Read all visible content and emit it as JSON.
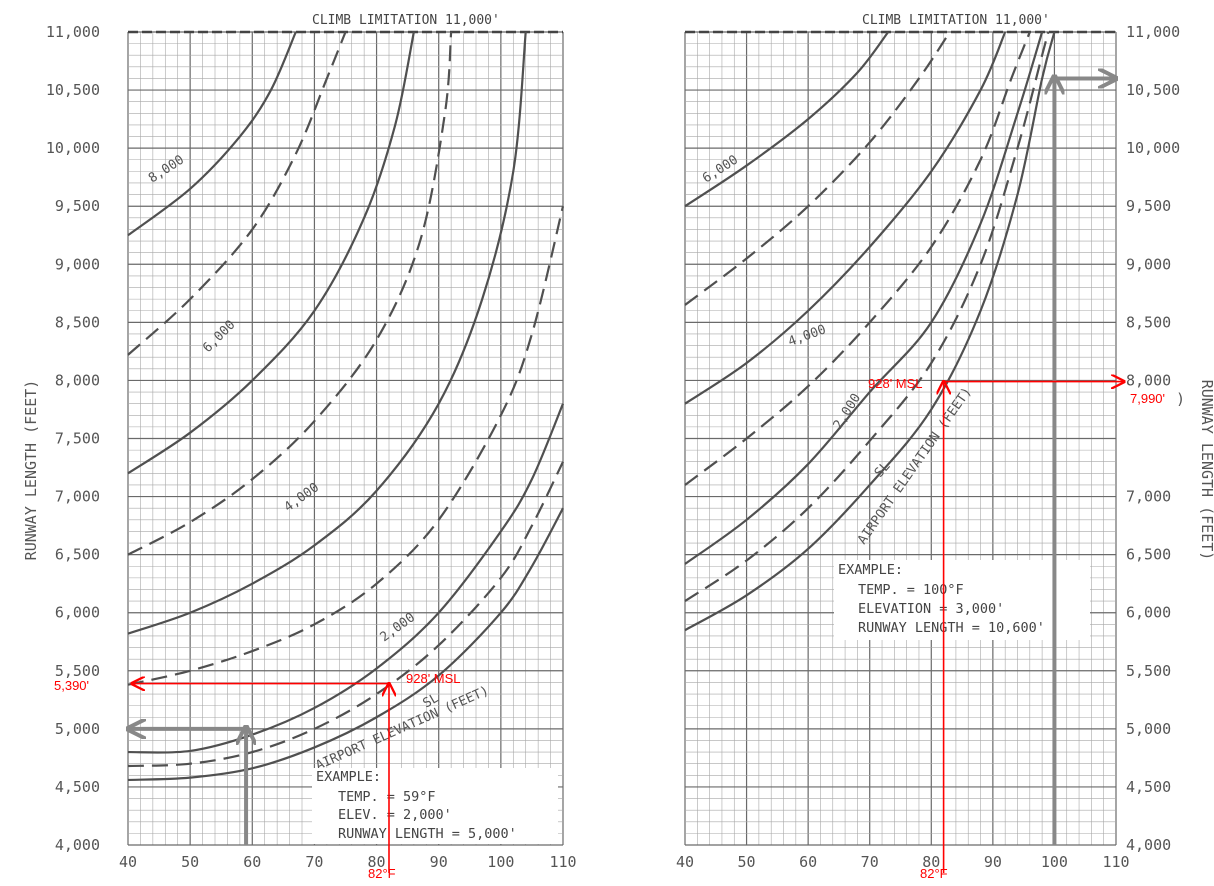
{
  "chart_data": [
    {
      "type": "line",
      "title": "CLIMB LIMITATION 11,000'",
      "xlabel": "",
      "ylabel": "RUNWAY LENGTH (FEET)",
      "xlim": [
        40,
        110
      ],
      "ylim": [
        4000,
        11000
      ],
      "x_ticks": [
        "40",
        "50",
        "60",
        "70",
        "80",
        "90",
        "100",
        "110"
      ],
      "y_ticks": [
        "4,000",
        "4,500",
        "5,000",
        "5,500",
        "6,000",
        "6,500",
        "7,000",
        "7,500",
        "8,000",
        "8,500",
        "9,000",
        "9,500",
        "10,000",
        "10,500",
        "11,000"
      ],
      "grid": true,
      "series": [
        {
          "name": "SL",
          "style": "solid",
          "points": [
            [
              40,
              4560
            ],
            [
              50,
              4580
            ],
            [
              60,
              4660
            ],
            [
              70,
              4840
            ],
            [
              80,
              5100
            ],
            [
              90,
              5460
            ],
            [
              100,
              6000
            ],
            [
              105,
              6400
            ],
            [
              110,
              6900
            ]
          ]
        },
        {
          "name": "",
          "style": "dashed",
          "points": [
            [
              40,
              4680
            ],
            [
              50,
              4700
            ],
            [
              60,
              4800
            ],
            [
              70,
              5000
            ],
            [
              80,
              5300
            ],
            [
              90,
              5720
            ],
            [
              100,
              6300
            ],
            [
              105,
              6750
            ],
            [
              110,
              7300
            ]
          ]
        },
        {
          "name": "",
          "style": "solid",
          "points": [
            [
              40,
              4800
            ],
            [
              50,
              4810
            ],
            [
              60,
              4950
            ],
            [
              70,
              5180
            ],
            [
              80,
              5520
            ],
            [
              90,
              6000
            ],
            [
              100,
              6700
            ],
            [
              105,
              7150
            ],
            [
              110,
              7800
            ]
          ]
        },
        {
          "name": "",
          "style": "dashed",
          "points": [
            [
              40,
              5380
            ],
            [
              50,
              5500
            ],
            [
              60,
              5670
            ],
            [
              70,
              5900
            ],
            [
              80,
              6250
            ],
            [
              90,
              6800
            ],
            [
              100,
              7700
            ],
            [
              105,
              8400
            ],
            [
              110,
              9500
            ]
          ]
        },
        {
          "name": "2,000",
          "style": "solid",
          "points": [
            [
              40,
              5820
            ],
            [
              50,
              6000
            ],
            [
              60,
              6250
            ],
            [
              70,
              6580
            ],
            [
              80,
              7050
            ],
            [
              90,
              7800
            ],
            [
              97,
              8700
            ],
            [
              102,
              9800
            ],
            [
              104,
              11000
            ]
          ]
        },
        {
          "name": "",
          "style": "dashed",
          "points": [
            [
              40,
              6500
            ],
            [
              50,
              6780
            ],
            [
              60,
              7150
            ],
            [
              70,
              7650
            ],
            [
              80,
              8350
            ],
            [
              87,
              9200
            ],
            [
              91,
              10300
            ],
            [
              92,
              11000
            ]
          ]
        },
        {
          "name": "4,000",
          "style": "solid",
          "points": [
            [
              40,
              7200
            ],
            [
              50,
              7550
            ],
            [
              60,
              8000
            ],
            [
              70,
              8600
            ],
            [
              78,
              9400
            ],
            [
              83,
              10200
            ],
            [
              86,
              11000
            ]
          ]
        },
        {
          "name": "",
          "style": "dashed",
          "points": [
            [
              40,
              8220
            ],
            [
              50,
              8700
            ],
            [
              60,
              9300
            ],
            [
              67,
              9950
            ],
            [
              72,
              10600
            ],
            [
              75,
              11000
            ]
          ]
        },
        {
          "name": "6,000",
          "style": "solid",
          "points": [
            [
              40,
              9250
            ],
            [
              50,
              9650
            ],
            [
              58,
              10100
            ],
            [
              63,
              10500
            ],
            [
              67,
              11000
            ]
          ]
        }
      ],
      "curve_labels": [
        "8,000",
        "6,000",
        "4,000",
        "2,000",
        "SL",
        "AIRPORT ELEVATION (FEET)"
      ],
      "example": {
        "heading": "EXAMPLE:",
        "lines": [
          "TEMP. = 59°F",
          "ELEV. = 2,000'",
          "RUNWAY LENGTH = 5,000'"
        ]
      },
      "annotations": {
        "elevation": "928' MSL",
        "result": "5,390'",
        "temp": "82°F"
      },
      "annotation_points": {
        "temp_f": 82,
        "runway_length_ft": 5390
      },
      "example_path": {
        "temp_f": 59,
        "runway_length_ft": 5000
      },
      "annotation_color": "#ff0000"
    },
    {
      "type": "line",
      "title": "CLIMB LIMITATION 11,000'",
      "xlabel": "",
      "ylabel": "RUNWAY LENGTH (FEET)",
      "xlim": [
        40,
        110
      ],
      "ylim": [
        4000,
        11000
      ],
      "x_ticks": [
        "40",
        "50",
        "60",
        "70",
        "80",
        "90",
        "100",
        "110"
      ],
      "y_ticks": [
        "4,000",
        "4,500",
        "5,000",
        "5,500",
        "6,000",
        "6,500",
        "7,000",
        "",
        "8,000",
        "8,500",
        "9,000",
        "9,500",
        "10,000",
        "10,500",
        "11,000"
      ],
      "y_tick_7500_fragment": ")",
      "grid": true,
      "series": [
        {
          "name": "SL",
          "style": "solid",
          "points": [
            [
              40,
              5850
            ],
            [
              50,
              6150
            ],
            [
              60,
              6550
            ],
            [
              70,
              7100
            ],
            [
              80,
              7750
            ],
            [
              88,
              8600
            ],
            [
              94,
              9600
            ],
            [
              98,
              10600
            ],
            [
              100,
              11000
            ]
          ]
        },
        {
          "name": "",
          "style": "dashed",
          "points": [
            [
              40,
              6100
            ],
            [
              50,
              6450
            ],
            [
              60,
              6900
            ],
            [
              70,
              7480
            ],
            [
              80,
              8150
            ],
            [
              88,
              9000
            ],
            [
              94,
              10000
            ],
            [
              98,
              10800
            ],
            [
              99,
              11000
            ]
          ]
        },
        {
          "name": "",
          "style": "solid",
          "points": [
            [
              40,
              6420
            ],
            [
              50,
              6800
            ],
            [
              60,
              7280
            ],
            [
              70,
              7900
            ],
            [
              80,
              8500
            ],
            [
              88,
              9350
            ],
            [
              94,
              10300
            ],
            [
              98,
              11000
            ]
          ]
        },
        {
          "name": "",
          "style": "dashed",
          "points": [
            [
              40,
              7100
            ],
            [
              50,
              7500
            ],
            [
              60,
              7950
            ],
            [
              70,
              8500
            ],
            [
              80,
              9150
            ],
            [
              88,
              9900
            ],
            [
              93,
              10600
            ],
            [
              96,
              11000
            ]
          ]
        },
        {
          "name": "2,000",
          "style": "solid",
          "points": [
            [
              40,
              7800
            ],
            [
              50,
              8150
            ],
            [
              60,
              8600
            ],
            [
              70,
              9150
            ],
            [
              80,
              9800
            ],
            [
              88,
              10500
            ],
            [
              92,
              11000
            ]
          ]
        },
        {
          "name": "",
          "style": "dashed",
          "points": [
            [
              40,
              8650
            ],
            [
              50,
              9050
            ],
            [
              60,
              9500
            ],
            [
              70,
              10050
            ],
            [
              78,
              10600
            ],
            [
              83,
              11000
            ]
          ]
        },
        {
          "name": "4,000",
          "style": "solid",
          "points": [
            [
              40,
              9500
            ],
            [
              50,
              9850
            ],
            [
              60,
              10250
            ],
            [
              68,
              10650
            ],
            [
              73,
              11000
            ]
          ]
        }
      ],
      "curve_labels": [
        "6,000",
        "4,000",
        "2,000",
        "SL",
        "AIRPORT ELEVATION (FEET)"
      ],
      "example": {
        "heading": "EXAMPLE:",
        "lines": [
          "TEMP. = 100°F",
          "ELEVATION = 3,000'",
          "RUNWAY LENGTH = 10,600'"
        ]
      },
      "annotations": {
        "elevation": "928' MSL",
        "result": "7,990'",
        "temp": "82°F"
      },
      "annotation_points": {
        "temp_f": 82,
        "runway_length_ft": 7990
      },
      "example_path": {
        "temp_f": 100,
        "runway_length_ft": 10600
      },
      "annotation_color": "#ff0000"
    }
  ]
}
